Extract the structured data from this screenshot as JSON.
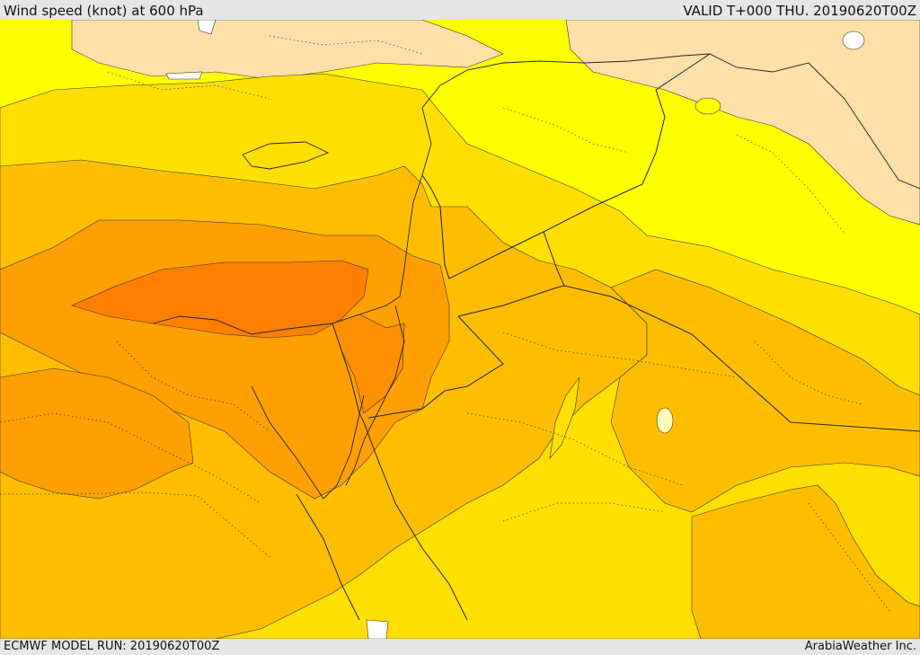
{
  "header": {
    "title": "Wind speed (knot) at 600 hPa",
    "valid": "VALID T+000 THU. 20190620T00Z"
  },
  "footer": {
    "model_run": "ECMWF MODEL RUN: 20190620T00Z",
    "credit": "ArabiaWeather Inc."
  },
  "colors": {
    "band_lowest": "#ffe0a8",
    "band_low": "#ffff00",
    "band_mid": "#ffdf00",
    "band_high": "#ffbf00",
    "band_higher": "#ff9f00",
    "band_highest": "#ff7f00",
    "no_data": "#ffffff",
    "lines": "#222222"
  }
}
